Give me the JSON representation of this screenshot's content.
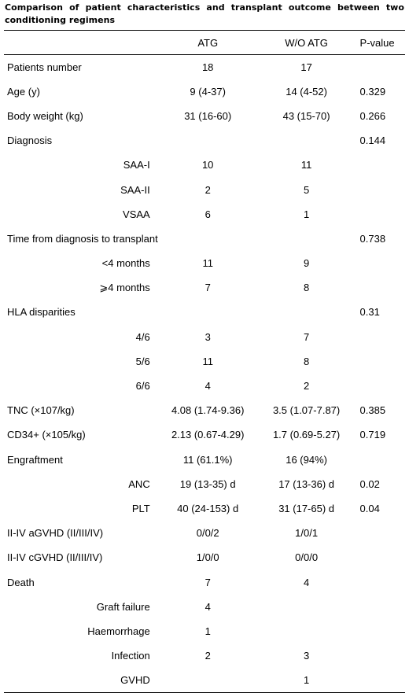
{
  "caption": "Comparison of patient characteristics and transplant outcome between two conditioning regimens",
  "table": {
    "headers": [
      "",
      "ATG",
      "W/O ATG",
      "P-value"
    ],
    "rows": [
      {
        "label": "Patients number",
        "sub": false,
        "atg": "18",
        "woatg": "17",
        "p": ""
      },
      {
        "label": "Age (y)",
        "sub": false,
        "atg": "9 (4-37)",
        "woatg": "14 (4-52)",
        "p": "0.329"
      },
      {
        "label": "Body weight (kg)",
        "sub": false,
        "atg": "31 (16-60)",
        "woatg": "43 (15-70)",
        "p": "0.266"
      },
      {
        "label": "Diagnosis",
        "sub": false,
        "atg": "",
        "woatg": "",
        "p": "0.144"
      },
      {
        "label": "SAA-I",
        "sub": true,
        "atg": "10",
        "woatg": "11",
        "p": ""
      },
      {
        "label": "SAA-II",
        "sub": true,
        "atg": "2",
        "woatg": "5",
        "p": ""
      },
      {
        "label": "VSAA",
        "sub": true,
        "atg": "6",
        "woatg": "1",
        "p": ""
      },
      {
        "label": "Time from diagnosis to transplant",
        "sub": false,
        "atg": "",
        "woatg": "",
        "p": "0.738"
      },
      {
        "label": "<4 months",
        "sub": true,
        "atg": "11",
        "woatg": "9",
        "p": ""
      },
      {
        "label": "⩾4 months",
        "sub": true,
        "atg": "7",
        "woatg": "8",
        "p": ""
      },
      {
        "label": "HLA disparities",
        "sub": false,
        "atg": "",
        "woatg": "",
        "p": "0.31"
      },
      {
        "label": "4/6",
        "sub": true,
        "atg": "3",
        "woatg": "7",
        "p": ""
      },
      {
        "label": "5/6",
        "sub": true,
        "atg": "11",
        "woatg": "8",
        "p": ""
      },
      {
        "label": "6/6",
        "sub": true,
        "atg": "4",
        "woatg": "2",
        "p": ""
      },
      {
        "label": "TNC (×107/kg)",
        "sub": false,
        "atg": "4.08 (1.74-9.36)",
        "woatg": "3.5 (1.07-7.87)",
        "p": "0.385"
      },
      {
        "label": "CD34+ (×105/kg)",
        "sub": false,
        "atg": "2.13 (0.67-4.29)",
        "woatg": "1.7 (0.69-5.27)",
        "p": "0.719"
      },
      {
        "label": "Engraftment",
        "sub": false,
        "atg": "11 (61.1%)",
        "woatg": "16 (94%)",
        "p": ""
      },
      {
        "label": "ANC",
        "sub": true,
        "atg": "19 (13-35) d",
        "woatg": "17 (13-36) d",
        "p": "0.02"
      },
      {
        "label": "PLT",
        "sub": true,
        "atg": "40 (24-153) d",
        "woatg": "31 (17-65) d",
        "p": "0.04"
      },
      {
        "label": "II-IV aGVHD (II/III/IV)",
        "sub": false,
        "atg": "0/0/2",
        "woatg": "1/0/1",
        "p": ""
      },
      {
        "label": "II-IV cGVHD (II/III/IV)",
        "sub": false,
        "atg": "1/0/0",
        "woatg": "0/0/0",
        "p": ""
      },
      {
        "label": "Death",
        "sub": false,
        "atg": "7",
        "woatg": "4",
        "p": ""
      },
      {
        "label": "Graft failure",
        "sub": true,
        "atg": "4",
        "woatg": "",
        "p": ""
      },
      {
        "label": "Haemorrhage",
        "sub": true,
        "atg": "1",
        "woatg": "",
        "p": ""
      },
      {
        "label": "Infection",
        "sub": true,
        "atg": "2",
        "woatg": "3",
        "p": ""
      },
      {
        "label": "GVHD",
        "sub": true,
        "atg": "",
        "woatg": "1",
        "p": ""
      }
    ]
  }
}
